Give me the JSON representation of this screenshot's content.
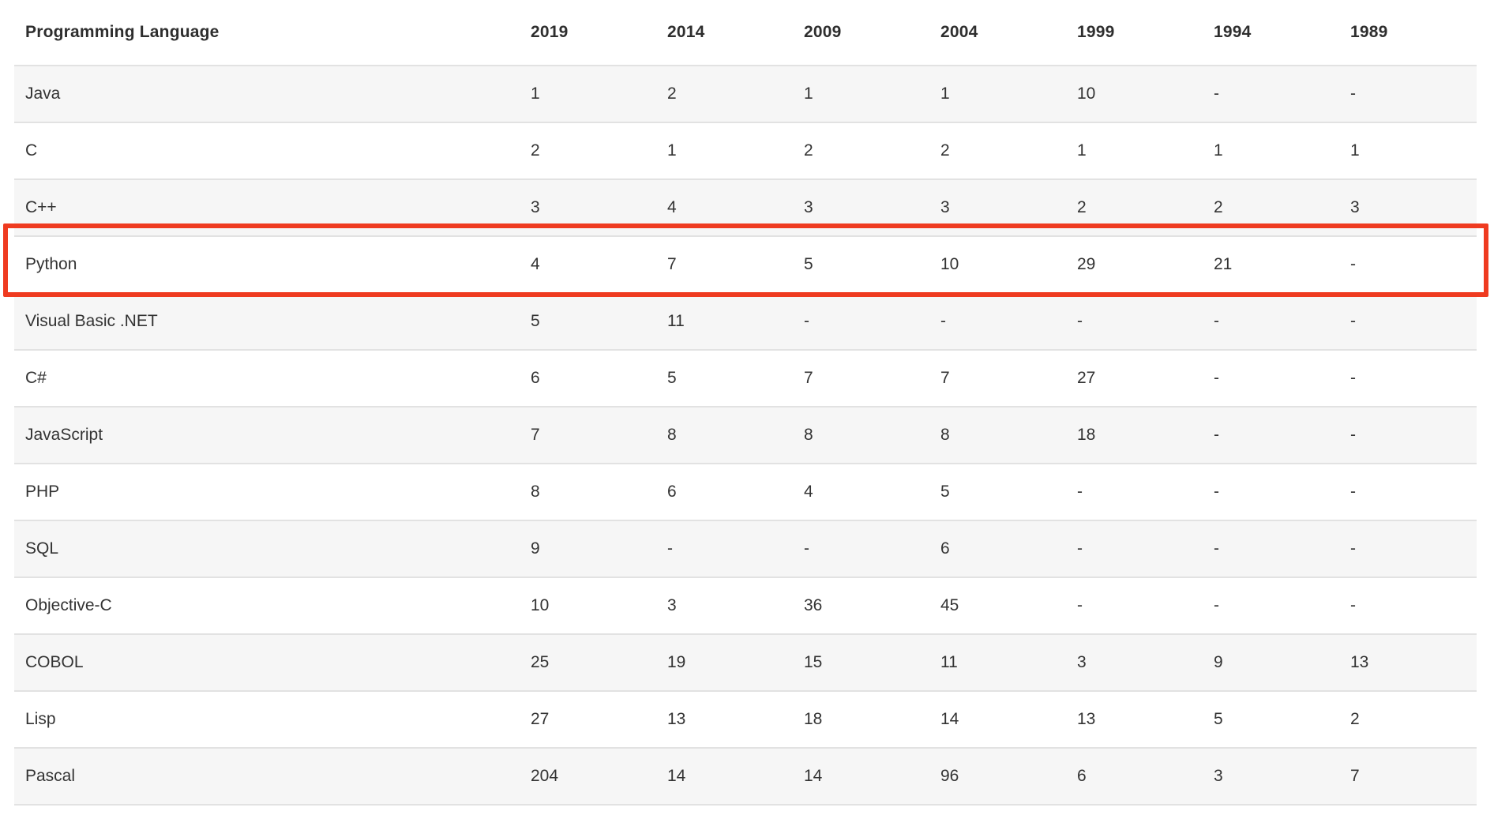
{
  "highlight": {
    "color": "#ef3b20",
    "highlighted_row": "Python"
  },
  "table": {
    "columns": [
      "Programming Language",
      "2019",
      "2014",
      "2009",
      "2004",
      "1999",
      "1994",
      "1989"
    ],
    "rows": [
      {
        "language": "Java",
        "values": [
          "1",
          "2",
          "1",
          "1",
          "10",
          "-",
          "-"
        ]
      },
      {
        "language": "C",
        "values": [
          "2",
          "1",
          "2",
          "2",
          "1",
          "1",
          "1"
        ]
      },
      {
        "language": "C++",
        "values": [
          "3",
          "4",
          "3",
          "3",
          "2",
          "2",
          "3"
        ]
      },
      {
        "language": "Python",
        "values": [
          "4",
          "7",
          "5",
          "10",
          "29",
          "21",
          "-"
        ],
        "highlighted": true
      },
      {
        "language": "Visual Basic .NET",
        "values": [
          "5",
          "11",
          "-",
          "-",
          "-",
          "-",
          "-"
        ]
      },
      {
        "language": "C#",
        "values": [
          "6",
          "5",
          "7",
          "7",
          "27",
          "-",
          "-"
        ]
      },
      {
        "language": "JavaScript",
        "values": [
          "7",
          "8",
          "8",
          "8",
          "18",
          "-",
          "-"
        ]
      },
      {
        "language": "PHP",
        "values": [
          "8",
          "6",
          "4",
          "5",
          "-",
          "-",
          "-"
        ]
      },
      {
        "language": "SQL",
        "values": [
          "9",
          "-",
          "-",
          "6",
          "-",
          "-",
          "-"
        ]
      },
      {
        "language": "Objective-C",
        "values": [
          "10",
          "3",
          "36",
          "45",
          "-",
          "-",
          "-"
        ]
      },
      {
        "language": "COBOL",
        "values": [
          "25",
          "19",
          "15",
          "11",
          "3",
          "9",
          "13"
        ]
      },
      {
        "language": "Lisp",
        "values": [
          "27",
          "13",
          "18",
          "14",
          "13",
          "5",
          "2"
        ]
      },
      {
        "language": "Pascal",
        "values": [
          "204",
          "14",
          "14",
          "96",
          "6",
          "3",
          "7"
        ]
      }
    ]
  },
  "chart_data": {
    "type": "table",
    "columns": [
      "Programming Language",
      "2019",
      "2014",
      "2009",
      "2004",
      "1999",
      "1994",
      "1989"
    ],
    "rows": [
      [
        "Java",
        "1",
        "2",
        "1",
        "1",
        "10",
        "-",
        "-"
      ],
      [
        "C",
        "2",
        "1",
        "2",
        "2",
        "1",
        "1",
        "1"
      ],
      [
        "C++",
        "3",
        "4",
        "3",
        "3",
        "2",
        "2",
        "3"
      ],
      [
        "Python",
        "4",
        "7",
        "5",
        "10",
        "29",
        "21",
        "-"
      ],
      [
        "Visual Basic .NET",
        "5",
        "11",
        "-",
        "-",
        "-",
        "-",
        "-"
      ],
      [
        "C#",
        "6",
        "5",
        "7",
        "7",
        "27",
        "-",
        "-"
      ],
      [
        "JavaScript",
        "7",
        "8",
        "8",
        "8",
        "18",
        "-",
        "-"
      ],
      [
        "PHP",
        "8",
        "6",
        "4",
        "5",
        "-",
        "-",
        "-"
      ],
      [
        "SQL",
        "9",
        "-",
        "-",
        "6",
        "-",
        "-",
        "-"
      ],
      [
        "Objective-C",
        "10",
        "3",
        "36",
        "45",
        "-",
        "-",
        "-"
      ],
      [
        "COBOL",
        "25",
        "19",
        "15",
        "11",
        "3",
        "9",
        "13"
      ],
      [
        "Lisp",
        "27",
        "13",
        "18",
        "14",
        "13",
        "5",
        "2"
      ],
      [
        "Pascal",
        "204",
        "14",
        "14",
        "96",
        "6",
        "3",
        "7"
      ]
    ],
    "annotation": "red rectangle highlighting the Python row",
    "layout": {
      "striped_rows": true,
      "grid": "horizontal dividers only",
      "value_alignment": "left"
    }
  }
}
